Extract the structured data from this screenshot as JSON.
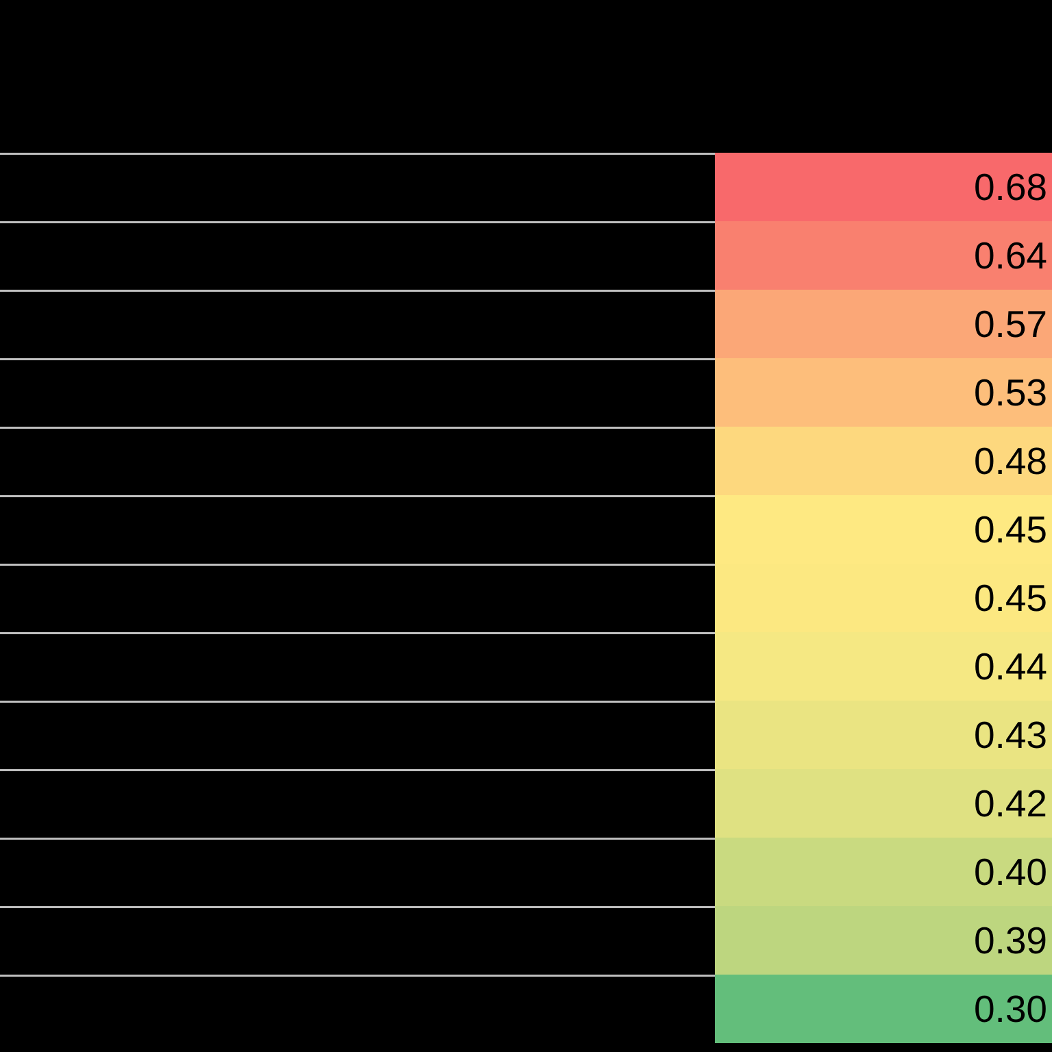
{
  "page": {
    "background_color": "#000000"
  },
  "table": {
    "row_separator_color": "#BFBFBF",
    "value_text_color": "#000000",
    "rows": [
      {
        "value": "0.68",
        "color": "#F8696B"
      },
      {
        "value": "0.64",
        "color": "#F9806F"
      },
      {
        "value": "0.57",
        "color": "#FBA777"
      },
      {
        "value": "0.53",
        "color": "#FDBE7B"
      },
      {
        "value": "0.48",
        "color": "#FDD87E"
      },
      {
        "value": "0.45",
        "color": "#FEE982"
      },
      {
        "value": "0.45",
        "color": "#FCE881"
      },
      {
        "value": "0.44",
        "color": "#F5E883"
      },
      {
        "value": "0.43",
        "color": "#EAE482"
      },
      {
        "value": "0.42",
        "color": "#DFE182"
      },
      {
        "value": "0.40",
        "color": "#C9DA80"
      },
      {
        "value": "0.39",
        "color": "#BDD67F"
      },
      {
        "value": "0.30",
        "color": "#63BE7B"
      }
    ]
  },
  "chart_data": {
    "type": "heatmap",
    "title": "",
    "values": [
      0.68,
      0.64,
      0.57,
      0.53,
      0.48,
      0.45,
      0.45,
      0.44,
      0.43,
      0.42,
      0.4,
      0.39,
      0.3
    ],
    "value_labels": [
      "0.68",
      "0.64",
      "0.57",
      "0.53",
      "0.48",
      "0.45",
      "0.45",
      "0.44",
      "0.43",
      "0.42",
      "0.40",
      "0.39",
      "0.30"
    ],
    "color_scale": {
      "high": "#F8696B",
      "mid": "#FFEB84",
      "low": "#63BE7B"
    },
    "layout": "single score column of 13 rows sorted descending; label cells to the left are blank on black background; thin gray rules separate rows on the left side only"
  }
}
